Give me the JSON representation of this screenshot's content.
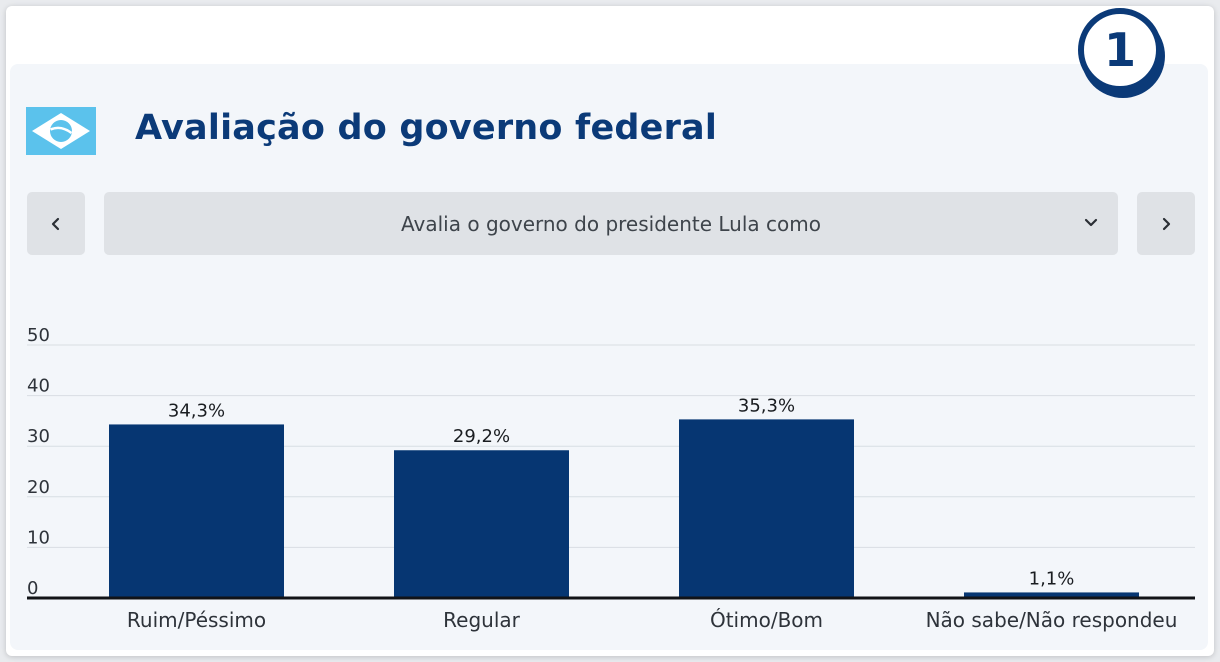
{
  "header": {
    "title": "Avaliação do governo federal",
    "badge_number": "1"
  },
  "icons": {
    "flag": "brazil-flag-icon",
    "prev": "chevron-left-icon",
    "next": "chevron-right-icon",
    "dropdown": "chevron-down-icon"
  },
  "question_select": {
    "selected": "Avalia o governo do presidente Lula como"
  },
  "colors": {
    "bar": "#063672",
    "title": "#0b3a78",
    "flag": "#5bc2ec"
  },
  "chart_data": {
    "type": "bar",
    "categories": [
      "Ruim/Péssimo",
      "Regular",
      "Ótimo/Bom",
      "Não sabe/Não respondeu"
    ],
    "values": [
      34.3,
      29.2,
      35.3,
      1.1
    ],
    "value_labels": [
      "34,3%",
      "29,2%",
      "35,3%",
      "1,1%"
    ],
    "yticks": [
      0,
      10,
      20,
      30,
      40,
      50
    ],
    "ylim": [
      0,
      50
    ],
    "grid": true,
    "legend": "none",
    "title": "",
    "xlabel": "",
    "ylabel": ""
  }
}
